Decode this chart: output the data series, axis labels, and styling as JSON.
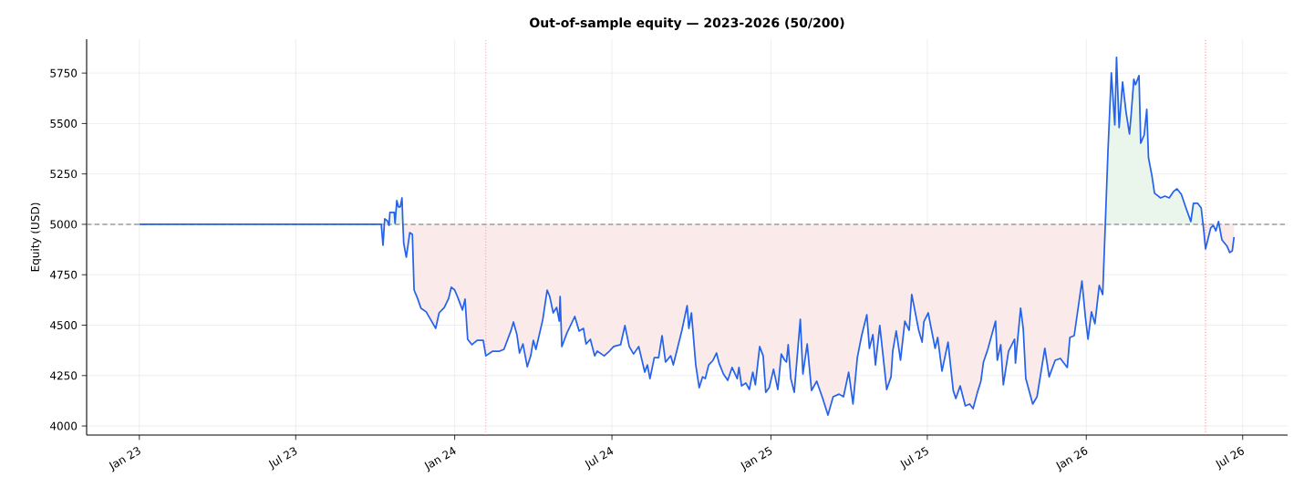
{
  "chart_data": {
    "type": "line",
    "title": "Out-of-sample equity — 2023-2026 (50/200)",
    "ylabel": "Equity (USD)",
    "xlim": [
      "2022-11-01",
      "2026-08-22"
    ],
    "ylim": [
      3955,
      5918
    ],
    "xticks": [
      {
        "value": "2023-01-01",
        "label": "Jan 23"
      },
      {
        "value": "2023-07-01",
        "label": "Jul 23"
      },
      {
        "value": "2024-01-01",
        "label": "Jan 24"
      },
      {
        "value": "2024-07-01",
        "label": "Jul 24"
      },
      {
        "value": "2025-01-01",
        "label": "Jan 25"
      },
      {
        "value": "2025-07-01",
        "label": "Jul 25"
      },
      {
        "value": "2026-01-01",
        "label": "Jan 26"
      },
      {
        "value": "2026-07-01",
        "label": "Jul 26"
      }
    ],
    "yticks": [
      4000,
      4250,
      4500,
      4750,
      5000,
      5250,
      5500,
      5750
    ],
    "grid": true,
    "marker": "none",
    "line_style": "solid",
    "ref_lines": [
      {
        "axis": "y",
        "value": 5000,
        "color": "#6b7280",
        "line_style": "dashed"
      },
      {
        "axis": "x",
        "value": "2024-02-06",
        "color": "#e09090",
        "line_style": "dotted"
      },
      {
        "axis": "x",
        "value": "2026-05-19",
        "color": "#ff5a5a",
        "line_style": "dotted"
      }
    ],
    "series": [
      {
        "color": "#2563eb",
        "x": [
          "2023-01-01",
          "2023-10-08",
          "2023-10-10",
          "2023-10-12",
          "2023-10-15",
          "2023-10-17",
          "2023-10-18",
          "2023-10-23",
          "2023-10-24",
          "2023-10-26",
          "2023-10-28",
          "2023-10-30",
          "2023-11-01",
          "2023-11-02",
          "2023-11-03",
          "2023-11-06",
          "2023-11-10",
          "2023-11-13",
          "2023-11-15",
          "2023-11-19",
          "2023-11-23",
          "2023-11-29",
          "2023-12-04",
          "2023-12-10",
          "2023-12-14",
          "2023-12-20",
          "2023-12-25",
          "2023-12-28",
          "2024-01-01",
          "2024-01-05",
          "2024-01-10",
          "2024-01-13",
          "2024-01-16",
          "2024-01-21",
          "2024-01-27",
          "2024-02-03",
          "2024-02-06",
          "2024-02-14",
          "2024-02-22",
          "2024-02-27",
          "2024-03-06",
          "2024-03-09",
          "2024-03-13",
          "2024-03-16",
          "2024-03-20",
          "2024-03-25",
          "2024-03-29",
          "2024-04-01",
          "2024-04-04",
          "2024-04-12",
          "2024-04-17",
          "2024-04-20",
          "2024-04-24",
          "2024-04-28",
          "2024-05-01",
          "2024-05-02",
          "2024-05-04",
          "2024-05-10",
          "2024-05-19",
          "2024-05-24",
          "2024-05-29",
          "2024-06-01",
          "2024-06-06",
          "2024-06-11",
          "2024-06-14",
          "2024-06-22",
          "2024-06-28",
          "2024-07-03",
          "2024-07-11",
          "2024-07-16",
          "2024-07-21",
          "2024-07-26",
          "2024-08-01",
          "2024-08-08",
          "2024-08-11",
          "2024-08-14",
          "2024-08-19",
          "2024-08-24",
          "2024-08-28",
          "2024-09-01",
          "2024-09-07",
          "2024-09-10",
          "2024-09-14",
          "2024-09-20",
          "2024-09-26",
          "2024-09-28",
          "2024-10-01",
          "2024-10-06",
          "2024-10-10",
          "2024-10-14",
          "2024-10-17",
          "2024-10-21",
          "2024-10-26",
          "2024-10-30",
          "2024-11-02",
          "2024-11-07",
          "2024-11-12",
          "2024-11-17",
          "2024-11-23",
          "2024-11-25",
          "2024-11-28",
          "2024-12-03",
          "2024-12-07",
          "2024-12-11",
          "2024-12-14",
          "2024-12-19",
          "2024-12-23",
          "2024-12-26",
          "2024-12-30",
          "2025-01-04",
          "2025-01-09",
          "2025-01-13",
          "2025-01-17",
          "2025-01-19",
          "2025-01-21",
          "2025-01-24",
          "2025-01-28",
          "2025-02-04",
          "2025-02-07",
          "2025-02-12",
          "2025-02-17",
          "2025-02-23",
          "2025-03-02",
          "2025-03-08",
          "2025-03-14",
          "2025-03-21",
          "2025-03-26",
          "2025-04-01",
          "2025-04-06",
          "2025-04-11",
          "2025-04-16",
          "2025-04-22",
          "2025-04-25",
          "2025-04-29",
          "2025-05-02",
          "2025-05-07",
          "2025-05-15",
          "2025-05-20",
          "2025-05-22",
          "2025-05-26",
          "2025-05-31",
          "2025-06-05",
          "2025-06-10",
          "2025-06-13",
          "2025-06-21",
          "2025-06-25",
          "2025-06-27",
          "2025-07-02",
          "2025-07-10",
          "2025-07-13",
          "2025-07-18",
          "2025-07-25",
          "2025-07-31",
          "2025-08-03",
          "2025-08-08",
          "2025-08-14",
          "2025-08-19",
          "2025-08-23",
          "2025-08-28",
          "2025-09-01",
          "2025-09-04",
          "2025-09-09",
          "2025-09-18",
          "2025-09-20",
          "2025-09-24",
          "2025-09-27",
          "2025-10-03",
          "2025-10-10",
          "2025-10-11",
          "2025-10-17",
          "2025-10-20",
          "2025-10-23",
          "2025-10-31",
          "2025-11-05",
          "2025-11-14",
          "2025-11-19",
          "2025-11-26",
          "2025-12-02",
          "2025-12-10",
          "2025-12-13",
          "2025-12-18",
          "2025-12-27",
          "2025-12-31",
          "2026-01-03",
          "2026-01-07",
          "2026-01-11",
          "2026-01-16",
          "2026-01-20",
          "2026-01-23",
          "2026-01-26",
          "2026-01-30",
          "2026-02-03",
          "2026-02-05",
          "2026-02-08",
          "2026-02-12",
          "2026-02-16",
          "2026-02-20",
          "2026-02-22",
          "2026-02-25",
          "2026-02-27",
          "2026-03-03",
          "2026-03-05",
          "2026-03-09",
          "2026-03-12",
          "2026-03-14",
          "2026-03-18",
          "2026-03-21",
          "2026-03-28",
          "2026-04-02",
          "2026-04-07",
          "2026-04-12",
          "2026-04-16",
          "2026-04-21",
          "2026-04-26",
          "2026-05-02",
          "2026-05-05",
          "2026-05-10",
          "2026-05-14",
          "2026-05-17",
          "2026-05-19",
          "2026-05-25",
          "2026-05-28",
          "2026-05-31",
          "2026-06-03",
          "2026-06-07",
          "2026-06-13",
          "2026-06-16",
          "2026-06-19",
          "2026-06-21"
        ],
        "values": [
          5000,
          5000,
          4896,
          5027,
          5018,
          4995,
          5059,
          5059,
          5005,
          5118,
          5086,
          5086,
          5131,
          5005,
          4905,
          4837,
          4959,
          4950,
          4674,
          4633,
          4584,
          4566,
          4529,
          4484,
          4561,
          4588,
          4633,
          4688,
          4674,
          4633,
          4575,
          4629,
          4430,
          4403,
          4425,
          4425,
          4348,
          4371,
          4371,
          4380,
          4471,
          4516,
          4453,
          4362,
          4407,
          4294,
          4348,
          4425,
          4380,
          4529,
          4674,
          4642,
          4561,
          4588,
          4520,
          4642,
          4394,
          4462,
          4543,
          4471,
          4484,
          4407,
          4430,
          4348,
          4371,
          4348,
          4371,
          4394,
          4403,
          4498,
          4394,
          4357,
          4394,
          4267,
          4303,
          4235,
          4339,
          4339,
          4448,
          4317,
          4348,
          4303,
          4371,
          4475,
          4597,
          4484,
          4561,
          4303,
          4190,
          4244,
          4235,
          4303,
          4326,
          4362,
          4312,
          4258,
          4226,
          4290,
          4235,
          4290,
          4199,
          4213,
          4181,
          4267,
          4204,
          4394,
          4348,
          4167,
          4190,
          4281,
          4181,
          4357,
          4326,
          4317,
          4403,
          4235,
          4167,
          4529,
          4258,
          4407,
          4176,
          4222,
          4136,
          4054,
          4145,
          4158,
          4145,
          4267,
          4109,
          4339,
          4448,
          4552,
          4385,
          4453,
          4303,
          4498,
          4181,
          4244,
          4371,
          4471,
          4326,
          4520,
          4475,
          4652,
          4475,
          4416,
          4516,
          4561,
          4385,
          4439,
          4272,
          4416,
          4176,
          4136,
          4199,
          4100,
          4109,
          4086,
          4167,
          4222,
          4317,
          4380,
          4520,
          4326,
          4403,
          4204,
          4371,
          4430,
          4312,
          4584,
          4484,
          4235,
          4109,
          4145,
          4385,
          4244,
          4326,
          4335,
          4290,
          4439,
          4448,
          4719,
          4538,
          4430,
          4566,
          4507,
          4697,
          4652,
          5000,
          5353,
          5751,
          5493,
          5828,
          5480,
          5706,
          5557,
          5448,
          5548,
          5720,
          5692,
          5738,
          5403,
          5443,
          5570,
          5330,
          5240,
          5154,
          5131,
          5140,
          5131,
          5163,
          5176,
          5149,
          5086,
          5014,
          5104,
          5104,
          5081,
          4968,
          4878,
          4982,
          4995,
          4968,
          5014,
          4923,
          4891,
          4860,
          4869,
          4937
        ]
      }
    ]
  }
}
